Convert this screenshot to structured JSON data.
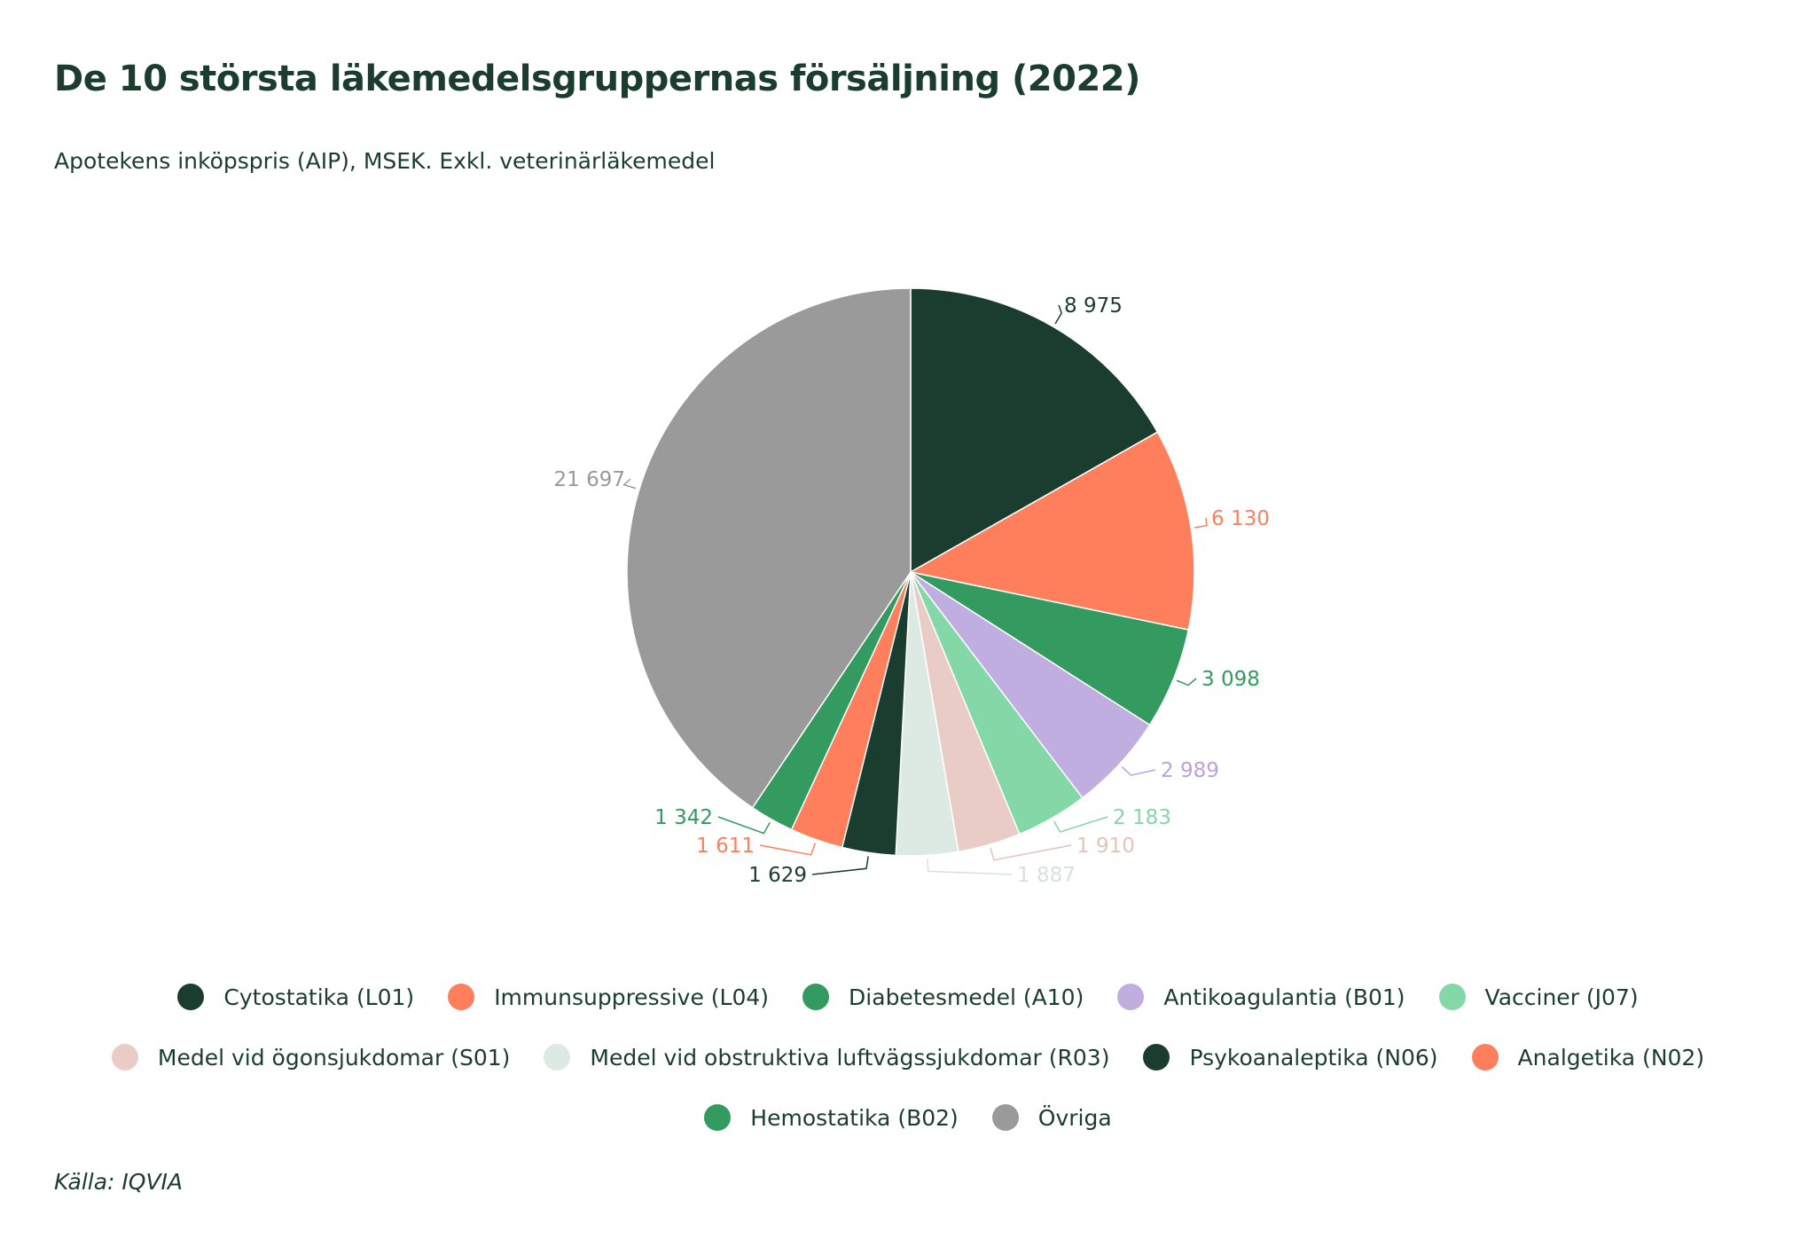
{
  "title": "De 10 största läkemedelsgruppernas försäljning (2022)",
  "subtitle": "Apotekens inköpspris (AIP), MSEK. Exkl. veterinärläkemedel",
  "source": "Källa: IQVIA",
  "chart_data": {
    "type": "pie",
    "title": "De 10 största läkemedelsgruppernas försäljning (2022)",
    "subtitle": "Apotekens inköpspris (AIP), MSEK. Exkl. veterinärläkemedel",
    "legend_position": "bottom",
    "slices": [
      {
        "name": "Cytostatika (L01)",
        "value": 8975,
        "label": "8 975",
        "color": "#1b3d2f"
      },
      {
        "name": "Immunsuppressive (L04)",
        "value": 6130,
        "label": "6 130",
        "color": "#ff7f5c"
      },
      {
        "name": "Diabetesmedel (A10)",
        "value": 3098,
        "label": "3 098",
        "color": "#339a60"
      },
      {
        "name": "Antikoagulantia (B01)",
        "value": 2989,
        "label": "2 989",
        "color": "#c0aee0"
      },
      {
        "name": "Vacciner (J07)",
        "value": 2183,
        "label": "2 183",
        "color": "#84d8a8"
      },
      {
        "name": "Medel vid ögonsjukdomar (S01)",
        "value": 1910,
        "label": "1 910",
        "color": "#eaccc7"
      },
      {
        "name": "Medel vid obstruktiva luftvägssjukdomar (R03)",
        "value": 1887,
        "label": "1 887",
        "color": "#dde9e3"
      },
      {
        "name": "Psykoanaleptika (N06)",
        "value": 1629,
        "label": "1 629",
        "color": "#1b3d2f"
      },
      {
        "name": "Analgetika (N02)",
        "value": 1611,
        "label": "1 611",
        "color": "#ff7f5c"
      },
      {
        "name": "Hemostatika (B02)",
        "value": 1342,
        "label": "1 342",
        "color": "#339a60"
      },
      {
        "name": "Övriga",
        "value": 21697,
        "label": "21 697",
        "color": "#9a9a9a"
      }
    ]
  },
  "legend": {
    "rows": [
      [
        0,
        1,
        2,
        3,
        4
      ],
      [
        5,
        6,
        7,
        8
      ],
      [
        9,
        10
      ]
    ]
  }
}
